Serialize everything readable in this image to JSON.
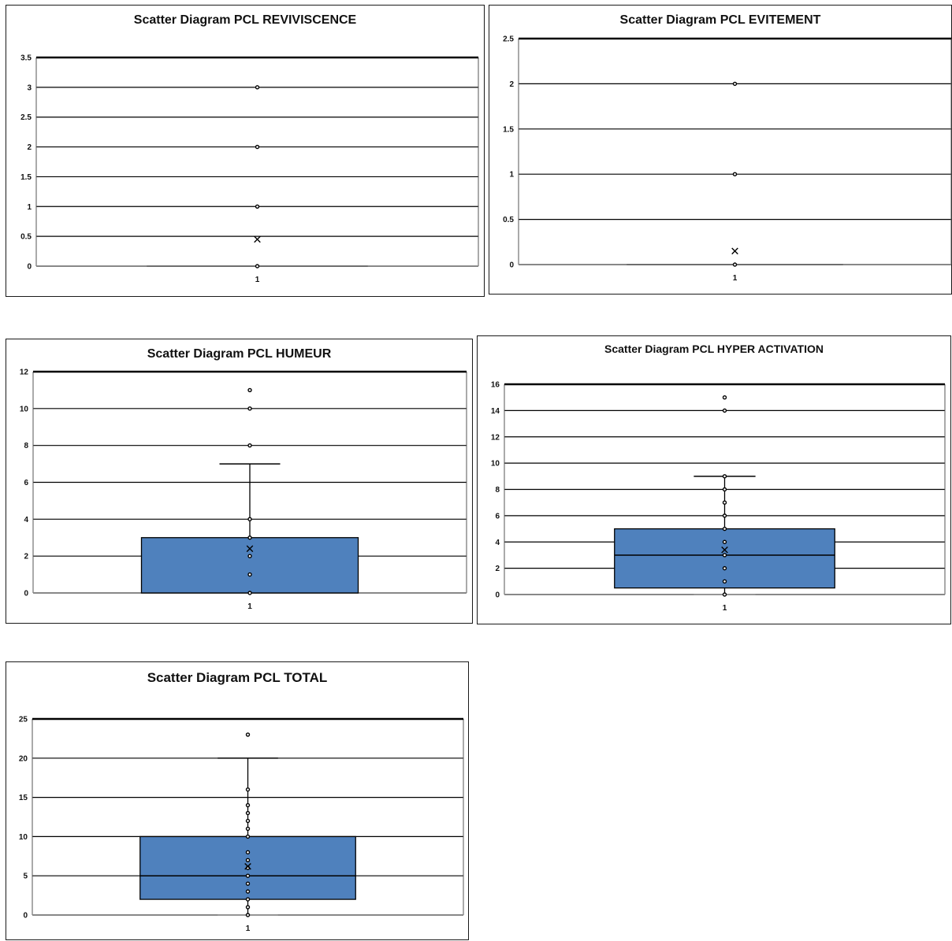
{
  "colors": {
    "box_fill": "#4f81bd",
    "line": "#000000",
    "frame": "#1a1a1a"
  },
  "chart_data": [
    {
      "type": "box",
      "title": "Scatter Diagram PCL  REVIVISCENCE",
      "categories": [
        "1"
      ],
      "yticks": [
        "0",
        "0.5",
        "1",
        "1.5",
        "2",
        "2.5",
        "3",
        "3.5"
      ],
      "ylim": [
        0,
        3.5
      ],
      "grid": true,
      "box": {
        "q1": 0,
        "median": 0,
        "q3": 0,
        "whisker_low": 0,
        "whisker_high": 0
      },
      "mean": 0.45,
      "points": [
        0,
        1,
        2,
        3
      ]
    },
    {
      "type": "box",
      "title": "Scatter Diagram PCL EVITEMENT",
      "categories": [
        "1"
      ],
      "yticks": [
        "0",
        "0.5",
        "1",
        "1.5",
        "2",
        "2.5"
      ],
      "ylim": [
        0,
        2.5
      ],
      "grid": true,
      "box": {
        "q1": 0,
        "median": 0,
        "q3": 0,
        "whisker_low": 0,
        "whisker_high": 0
      },
      "mean": 0.15,
      "points": [
        0,
        1,
        2
      ]
    },
    {
      "type": "box",
      "title": "Scatter Diagram PCL HUMEUR",
      "categories": [
        "1"
      ],
      "yticks": [
        "0",
        "2",
        "4",
        "6",
        "8",
        "10",
        "12"
      ],
      "ylim": [
        0,
        12
      ],
      "grid": true,
      "box": {
        "q1": 0,
        "median": 0,
        "q3": 3,
        "whisker_low": 0,
        "whisker_high": 7
      },
      "mean": 2.4,
      "points": [
        0,
        1,
        2,
        3,
        4,
        8,
        10,
        11
      ]
    },
    {
      "type": "box",
      "title": "Scatter Diagram PCL HYPER ACTIVATION",
      "categories": [
        "1"
      ],
      "yticks": [
        "0",
        "2",
        "4",
        "6",
        "8",
        "10",
        "12",
        "14",
        "16"
      ],
      "ylim": [
        0,
        16
      ],
      "grid": true,
      "box": {
        "q1": 0.5,
        "median": 3,
        "q3": 5,
        "whisker_low": 0,
        "whisker_high": 9
      },
      "mean": 3.4,
      "points": [
        0,
        1,
        2,
        3,
        4,
        5,
        6,
        7,
        8,
        9,
        14,
        15
      ]
    },
    {
      "type": "box",
      "title": "Scatter Diagram  PCL TOTAL",
      "categories": [
        "1"
      ],
      "yticks": [
        "0",
        "5",
        "10",
        "15",
        "20",
        "25"
      ],
      "ylim": [
        0,
        25
      ],
      "grid": true,
      "box": {
        "q1": 2,
        "median": 5,
        "q3": 10,
        "whisker_low": 0,
        "whisker_high": 20
      },
      "mean": 6.2,
      "points": [
        0,
        1,
        2,
        3,
        4,
        5,
        6,
        7,
        8,
        10,
        11,
        12,
        13,
        14,
        16,
        23
      ]
    }
  ]
}
